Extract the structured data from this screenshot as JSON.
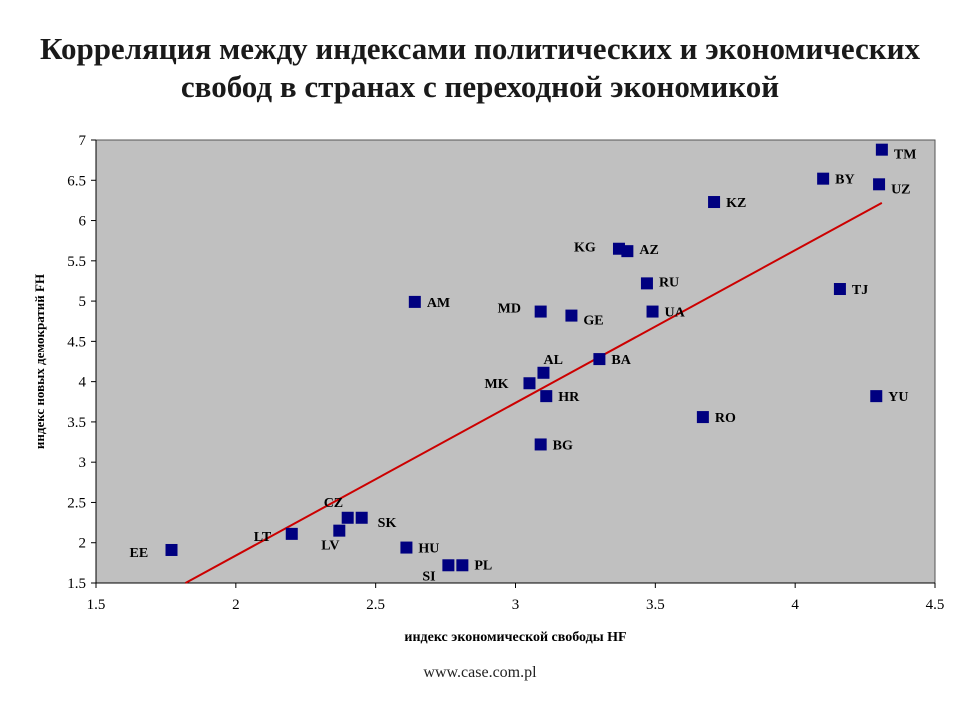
{
  "title_line1": "Корреляция между индексами политических и экономических",
  "title_line2": "свобод в странах с переходной экономикой",
  "footer": "www.case.com.pl",
  "colors": {
    "plot_bg": "#c0c0c0",
    "point": "#000080",
    "trendline": "#cc0000"
  },
  "chart_data": {
    "type": "scatter",
    "xlabel": "индекс экономической свободы HF",
    "ylabel": "индекс новых демократий FH",
    "xlim": [
      1.5,
      4.5
    ],
    "ylim": [
      1.5,
      7
    ],
    "xticks": [
      "1.5",
      "2",
      "2.5",
      "3",
      "3.5",
      "4",
      "4.5"
    ],
    "yticks": [
      "1.5",
      "2",
      "2.5",
      "3",
      "3.5",
      "4",
      "4.5",
      "5",
      "5.5",
      "6",
      "6.5",
      "7"
    ],
    "grid": false,
    "trendline": {
      "x": [
        1.82,
        4.31
      ],
      "y": [
        1.5,
        6.22
      ]
    },
    "points": [
      {
        "label": "TM",
        "x": 4.31,
        "y": 6.88
      },
      {
        "label": "BY",
        "x": 4.1,
        "y": 6.52
      },
      {
        "label": "UZ",
        "x": 4.3,
        "y": 6.45
      },
      {
        "label": "KZ",
        "x": 3.71,
        "y": 6.23
      },
      {
        "label": "KG",
        "x": 3.37,
        "y": 5.65
      },
      {
        "label": "AZ",
        "x": 3.4,
        "y": 5.62
      },
      {
        "label": "RU",
        "x": 3.47,
        "y": 5.22
      },
      {
        "label": "TJ",
        "x": 4.16,
        "y": 5.15
      },
      {
        "label": "AM",
        "x": 2.64,
        "y": 4.99
      },
      {
        "label": "MD",
        "x": 3.09,
        "y": 4.87
      },
      {
        "label": "UA",
        "x": 3.49,
        "y": 4.87
      },
      {
        "label": "GE",
        "x": 3.2,
        "y": 4.82
      },
      {
        "label": "AL",
        "x": 3.1,
        "y": 4.11
      },
      {
        "label": "BA",
        "x": 3.3,
        "y": 4.28
      },
      {
        "label": "MK",
        "x": 3.05,
        "y": 3.98
      },
      {
        "label": "HR",
        "x": 3.11,
        "y": 3.82
      },
      {
        "label": "YU",
        "x": 4.29,
        "y": 3.82
      },
      {
        "label": "RO",
        "x": 3.67,
        "y": 3.56
      },
      {
        "label": "BG",
        "x": 3.09,
        "y": 3.22
      },
      {
        "label": "CZ",
        "x": 2.4,
        "y": 2.31
      },
      {
        "label": "SK",
        "x": 2.45,
        "y": 2.31
      },
      {
        "label": "LT",
        "x": 2.2,
        "y": 2.11
      },
      {
        "label": "LV",
        "x": 2.37,
        "y": 2.15
      },
      {
        "label": "EE",
        "x": 1.77,
        "y": 1.91
      },
      {
        "label": "HU",
        "x": 2.61,
        "y": 1.94
      },
      {
        "label": "SI",
        "x": 2.76,
        "y": 1.72
      },
      {
        "label": "PL",
        "x": 2.81,
        "y": 1.72
      }
    ]
  }
}
